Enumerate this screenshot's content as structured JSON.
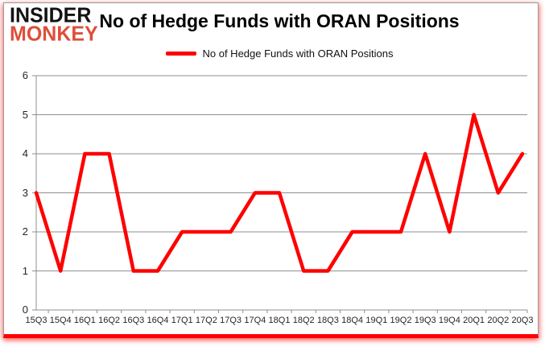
{
  "logo": {
    "line1": "INSIDER",
    "line2": "MONKEY"
  },
  "header": {
    "title": "No of Hedge Funds with ORAN Positions"
  },
  "legend": {
    "label": "No of Hedge Funds with ORAN Positions"
  },
  "chart_data": {
    "type": "line",
    "title": "No of Hedge Funds with ORAN Positions",
    "categories": [
      "15Q3",
      "15Q4",
      "16Q1",
      "16Q2",
      "16Q3",
      "16Q4",
      "17Q1",
      "17Q2",
      "17Q3",
      "17Q4",
      "18Q1",
      "18Q2",
      "18Q3",
      "18Q4",
      "19Q1",
      "19Q2",
      "19Q3",
      "19Q4",
      "20Q1",
      "20Q2",
      "20Q3"
    ],
    "series": [
      {
        "name": "No of Hedge Funds with ORAN Positions",
        "values": [
          3,
          1,
          4,
          4,
          1,
          1,
          2,
          2,
          2,
          3,
          3,
          1,
          1,
          2,
          2,
          2,
          4,
          2,
          5,
          3,
          4
        ],
        "color": "#ff0000"
      }
    ],
    "xlabel": "",
    "ylabel": "",
    "ylim": [
      0,
      6
    ],
    "yticks": [
      0,
      1,
      2,
      3,
      4,
      5,
      6
    ],
    "grid": true,
    "legend_position": "top-center",
    "gridline_color": "#8f8f8f",
    "axis_color": "#8f8f8f",
    "tick_label_color": "#262626"
  },
  "colors": {
    "logo_black": "#131313",
    "logo_red": "#dd4f3a",
    "series_red": "#ff0000",
    "bottom_border_red": "#fe0000"
  }
}
